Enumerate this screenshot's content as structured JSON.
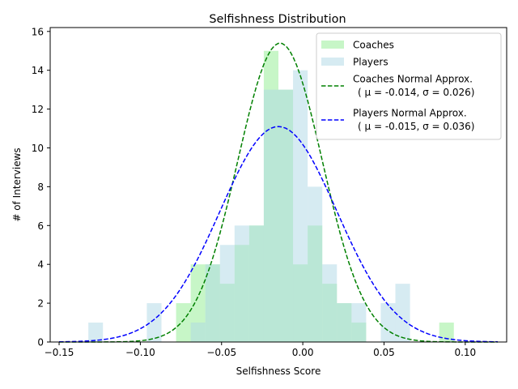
{
  "chart_data": {
    "type": "bar",
    "title": "Selfishness Distribution",
    "xlabel": "Selfishness Score",
    "ylabel": "# of Interviews",
    "xlim": [
      -0.1555,
      0.1255
    ],
    "ylim": [
      0,
      16.2
    ],
    "xticks": [
      -0.15,
      -0.1,
      -0.05,
      0.0,
      0.05,
      0.1
    ],
    "xtick_labels": [
      "−0.15",
      "−0.10",
      "−0.05",
      "0.00",
      "0.05",
      "0.10"
    ],
    "yticks": [
      0,
      2,
      4,
      6,
      8,
      10,
      12,
      14,
      16
    ],
    "ytick_labels": [
      "0",
      "2",
      "4",
      "6",
      "8",
      "10",
      "12",
      "14",
      "16"
    ],
    "bin_edges": [
      -0.15,
      -0.141,
      -0.132,
      -0.123,
      -0.114,
      -0.105,
      -0.096,
      -0.087,
      -0.078,
      -0.069,
      -0.06,
      -0.051,
      -0.042,
      -0.033,
      -0.024,
      -0.015,
      -0.006,
      0.003,
      0.012,
      0.021,
      0.03,
      0.039,
      0.048,
      0.057,
      0.066,
      0.075,
      0.084,
      0.093,
      0.102,
      0.111,
      0.12
    ],
    "series": [
      {
        "name": "Coaches",
        "kind": "hist",
        "color": "#90ee90",
        "alpha": 0.5,
        "values": [
          0,
          0,
          0,
          0,
          0,
          0,
          0,
          0,
          2,
          4,
          4,
          3,
          5,
          6,
          15,
          13,
          4,
          6,
          3,
          2,
          1,
          0,
          0,
          0,
          0,
          0,
          1,
          0,
          0,
          0
        ]
      },
      {
        "name": "Players",
        "kind": "hist",
        "color": "#add8e6",
        "alpha": 0.5,
        "values": [
          0,
          0,
          1,
          0,
          0,
          0,
          2,
          0,
          0,
          1,
          4,
          5,
          6,
          6,
          13,
          13,
          14,
          8,
          4,
          2,
          2,
          0,
          2,
          3,
          0,
          0,
          0,
          0,
          0,
          0
        ]
      },
      {
        "name": "Coaches Normal Approx.",
        "name_line2": "( μ = -0.014, σ = 0.026)",
        "kind": "normal",
        "color": "#008000",
        "mu": -0.014,
        "sigma": 0.026,
        "scale": 15.4
      },
      {
        "name": "Players Normal Approx.",
        "name_line2": "( μ = -0.015, σ = 0.036)",
        "kind": "normal",
        "color": "#0000ff",
        "mu": -0.015,
        "sigma": 0.036,
        "scale": 11.1
      }
    ],
    "legend_position": "upper right",
    "grid": false
  }
}
